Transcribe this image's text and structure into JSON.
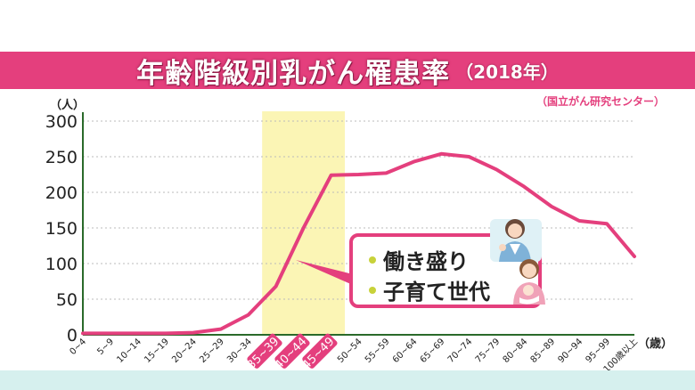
{
  "title": {
    "main": "年齢階級別乳がん罹患率",
    "year": "（2018年）"
  },
  "source": "（国立がん研究センター）",
  "callout": {
    "lines": [
      "働き盛り",
      "子育て世代"
    ]
  },
  "colors": {
    "accent": "#e43f7d",
    "highlight": "#fbf5b5",
    "axis": "#2a6a2a",
    "dot": "#c8d23a"
  },
  "chart_data": {
    "type": "line",
    "ylabel": "（人）",
    "xlabel": "（歳）",
    "ylim": [
      0,
      300
    ],
    "yticks": [
      0,
      50,
      100,
      150,
      200,
      250,
      300
    ],
    "grid": true,
    "categories": [
      "0~4",
      "5~9",
      "10~14",
      "15~19",
      "20~24",
      "25~29",
      "30~34",
      "35~39",
      "40~44",
      "45~49",
      "50~54",
      "55~59",
      "60~64",
      "65~69",
      "70~74",
      "75~79",
      "80~84",
      "85~89",
      "90~94",
      "95~99",
      "100歳以上"
    ],
    "highlighted_categories": [
      "35~39",
      "40~44",
      "45~49"
    ],
    "series": [
      {
        "values": [
          2,
          2,
          2,
          2,
          3,
          8,
          28,
          68,
          150,
          224,
          225,
          227,
          243,
          254,
          250,
          232,
          208,
          180,
          160,
          156,
          110
        ]
      }
    ]
  }
}
